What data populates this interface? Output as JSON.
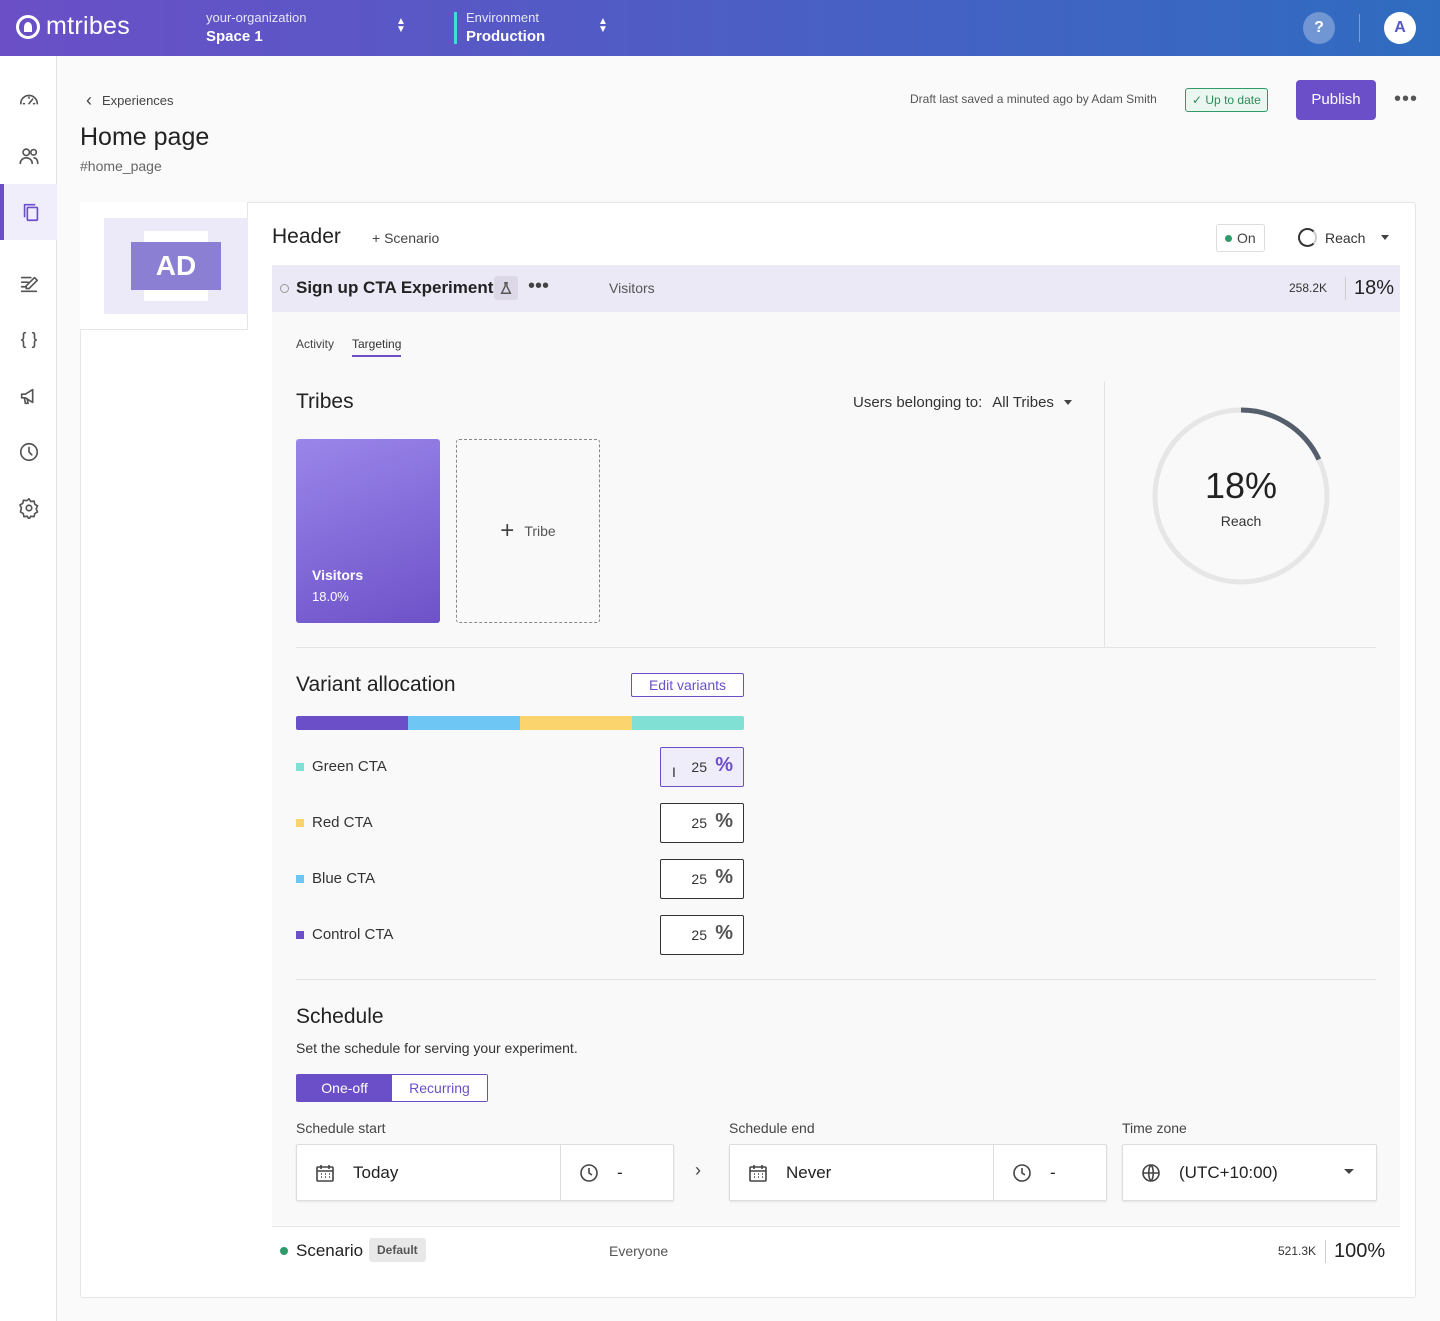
{
  "app": {
    "brand": "mtribes"
  },
  "topbar": {
    "org_label": "your-organization",
    "space": "Space 1",
    "env_label": "Environment",
    "env": "Production",
    "help": "?",
    "avatar": "A"
  },
  "nav": {
    "items": [
      {
        "icon": "dashboard-icon"
      },
      {
        "icon": "users-icon"
      },
      {
        "icon": "experiences-icon",
        "active": true
      },
      {
        "icon": "edit-icon"
      },
      {
        "icon": "code-braces-icon"
      },
      {
        "icon": "campaign-icon"
      },
      {
        "icon": "history-icon"
      },
      {
        "icon": "settings-icon"
      }
    ]
  },
  "header": {
    "back_label": "Experiences",
    "title": "Home page",
    "key": "#home_page",
    "draft_text": "Draft last saved a minuted ago by Adam Smith",
    "status": "Up to date",
    "publish_label": "Publish"
  },
  "section": {
    "thumb_text": "AD",
    "title": "Header",
    "add_scenario": "+ Scenario",
    "state": "On",
    "reach_dropdown": "Reach"
  },
  "experiment": {
    "name": "Sign up CTA Experiment",
    "tribe": "Visitors",
    "count": "258.2K",
    "percent": "18%"
  },
  "tabs": {
    "activity": "Activity",
    "targeting": "Targeting"
  },
  "tribes": {
    "title": "Tribes",
    "users_belonging": "Users belonging to:",
    "filter": "All Tribes",
    "cards": [
      {
        "name": "Visitors",
        "percent": "18.0%"
      }
    ],
    "add_label": "Tribe",
    "reach_percent": "18%",
    "reach_label": "Reach",
    "reach_value": 0.18
  },
  "variants": {
    "title": "Variant allocation",
    "edit_label": "Edit variants",
    "items": [
      {
        "name": "Green CTA",
        "value": "25",
        "color": "#7fe0d3"
      },
      {
        "name": "Red CTA",
        "value": "25",
        "color": "#fbd46d"
      },
      {
        "name": "Blue CTA",
        "value": "25",
        "color": "#6ec6f5"
      },
      {
        "name": "Control CTA",
        "value": "25",
        "color": "#6b4fc9"
      }
    ],
    "bar_order": [
      "#6b4fc9",
      "#6ec6f5",
      "#fbd46d",
      "#7fe0d3"
    ]
  },
  "schedule": {
    "title": "Schedule",
    "subtitle": "Set the schedule for serving your experiment.",
    "mode_oneoff": "One-off",
    "mode_recurring": "Recurring",
    "start_label": "Schedule start",
    "start_date": "Today",
    "start_time": "-",
    "end_label": "Schedule end",
    "end_date": "Never",
    "end_time": "-",
    "tz_label": "Time zone",
    "tz_value": "(UTC+10:00)"
  },
  "default_scenario": {
    "name": "Scenario",
    "badge": "Default",
    "tribe": "Everyone",
    "count": "521.3K",
    "percent": "100%"
  },
  "colors": {
    "accent": "#6b4fc9",
    "success": "#2f9a6a"
  }
}
